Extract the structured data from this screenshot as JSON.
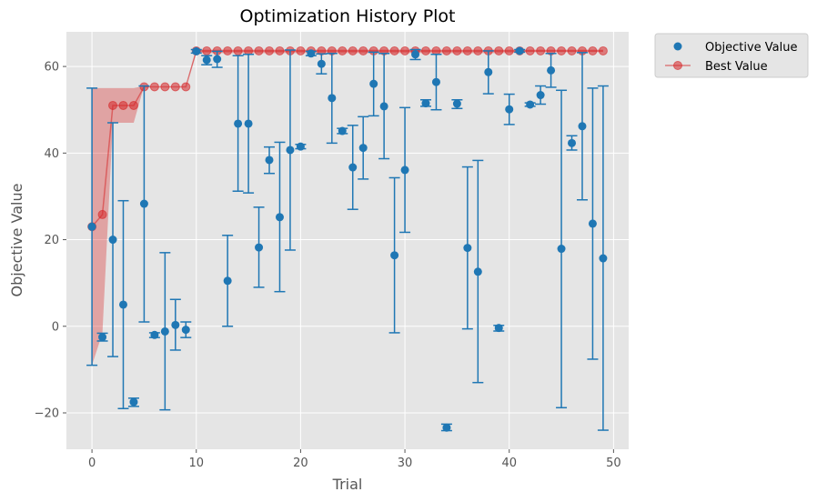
{
  "chart_data": {
    "type": "scatter",
    "title": "Optimization History Plot",
    "xlabel": "Trial",
    "ylabel": "Objective Value",
    "xlim": [
      -2.45,
      51.45
    ],
    "ylim": [
      -28.4,
      68.0
    ],
    "xticks": [
      0,
      10,
      20,
      30,
      40,
      50
    ],
    "yticks": [
      -20,
      0,
      20,
      40,
      60
    ],
    "xtick_labels": [
      "0",
      "10",
      "20",
      "30",
      "40",
      "50"
    ],
    "ytick_labels": [
      "−20",
      "0",
      "20",
      "40",
      "60"
    ],
    "grid": true,
    "legend": {
      "position": "outside-top-right",
      "entries": [
        "Objective Value",
        "Best Value"
      ]
    },
    "colors": {
      "objective": "#1f77b4",
      "best": "#d62728",
      "plot_bg": "#e5e5e5",
      "grid": "#ffffff"
    },
    "series": [
      {
        "name": "Objective Value",
        "kind": "scatter_with_errorbars",
        "points": [
          {
            "x": 0,
            "y": 23.0,
            "low": -9.0,
            "high": 55.0
          },
          {
            "x": 1,
            "y": -2.5,
            "low": -3.4,
            "high": -1.6
          },
          {
            "x": 2,
            "y": 20.0,
            "low": -7.0,
            "high": 47.0
          },
          {
            "x": 3,
            "y": 5.0,
            "low": -19.0,
            "high": 29.0
          },
          {
            "x": 4,
            "y": -17.5,
            "low": -18.5,
            "high": -16.6
          },
          {
            "x": 5,
            "y": 28.3,
            "low": 1.0,
            "high": 55.5
          },
          {
            "x": 6,
            "y": -2.0,
            "low": -2.6,
            "high": -1.5
          },
          {
            "x": 7,
            "y": -1.2,
            "low": -19.3,
            "high": 17.0
          },
          {
            "x": 8,
            "y": 0.3,
            "low": -5.5,
            "high": 6.2
          },
          {
            "x": 9,
            "y": -0.8,
            "low": -2.6,
            "high": 1.0
          },
          {
            "x": 10,
            "y": 63.5,
            "low": 63.1,
            "high": 63.9
          },
          {
            "x": 11,
            "y": 61.5,
            "low": 60.4,
            "high": 62.5
          },
          {
            "x": 12,
            "y": 61.7,
            "low": 59.8,
            "high": 63.5
          },
          {
            "x": 13,
            "y": 10.5,
            "low": 0.0,
            "high": 21.0
          },
          {
            "x": 14,
            "y": 46.8,
            "low": 31.2,
            "high": 62.5
          },
          {
            "x": 15,
            "y": 46.8,
            "low": 30.8,
            "high": 62.8
          },
          {
            "x": 16,
            "y": 18.2,
            "low": 9.0,
            "high": 27.5
          },
          {
            "x": 17,
            "y": 38.4,
            "low": 35.3,
            "high": 41.4
          },
          {
            "x": 18,
            "y": 25.2,
            "low": 8.0,
            "high": 42.5
          },
          {
            "x": 19,
            "y": 40.7,
            "low": 17.6,
            "high": 63.8
          },
          {
            "x": 20,
            "y": 41.5,
            "low": 41.0,
            "high": 42.0
          },
          {
            "x": 21,
            "y": 63.0,
            "low": 62.5,
            "high": 63.5
          },
          {
            "x": 22,
            "y": 60.6,
            "low": 58.3,
            "high": 62.9
          },
          {
            "x": 23,
            "y": 52.7,
            "low": 42.3,
            "high": 63.0
          },
          {
            "x": 24,
            "y": 45.1,
            "low": 44.5,
            "high": 45.7
          },
          {
            "x": 25,
            "y": 36.7,
            "low": 27.0,
            "high": 46.4
          },
          {
            "x": 26,
            "y": 41.2,
            "low": 34.0,
            "high": 48.4
          },
          {
            "x": 27,
            "y": 56.0,
            "low": 48.6,
            "high": 63.3
          },
          {
            "x": 28,
            "y": 50.8,
            "low": 38.7,
            "high": 63.0
          },
          {
            "x": 29,
            "y": 16.4,
            "low": -1.5,
            "high": 34.3
          },
          {
            "x": 30,
            "y": 36.1,
            "low": 21.7,
            "high": 50.5
          },
          {
            "x": 31,
            "y": 62.8,
            "low": 61.6,
            "high": 63.9
          },
          {
            "x": 32,
            "y": 51.5,
            "low": 50.8,
            "high": 52.3
          },
          {
            "x": 33,
            "y": 56.4,
            "low": 50.0,
            "high": 62.8
          },
          {
            "x": 34,
            "y": -23.4,
            "low": -24.1,
            "high": -22.6
          },
          {
            "x": 35,
            "y": 51.4,
            "low": 50.3,
            "high": 52.3
          },
          {
            "x": 36,
            "y": 18.1,
            "low": -0.6,
            "high": 36.8
          },
          {
            "x": 37,
            "y": 12.6,
            "low": -13.0,
            "high": 38.3
          },
          {
            "x": 38,
            "y": 58.7,
            "low": 53.7,
            "high": 63.6
          },
          {
            "x": 39,
            "y": -0.4,
            "low": -1.1,
            "high": 0.2
          },
          {
            "x": 40,
            "y": 50.1,
            "low": 46.6,
            "high": 53.6
          },
          {
            "x": 41,
            "y": 63.6,
            "low": 63.3,
            "high": 63.9
          },
          {
            "x": 42,
            "y": 51.2,
            "low": 50.8,
            "high": 51.6
          },
          {
            "x": 43,
            "y": 53.4,
            "low": 51.3,
            "high": 55.5
          },
          {
            "x": 44,
            "y": 59.1,
            "low": 55.2,
            "high": 63.0
          },
          {
            "x": 45,
            "y": 17.9,
            "low": -18.8,
            "high": 54.5
          },
          {
            "x": 46,
            "y": 42.3,
            "low": 40.7,
            "high": 44.0
          },
          {
            "x": 47,
            "y": 46.2,
            "low": 29.2,
            "high": 63.2
          },
          {
            "x": 48,
            "y": 23.7,
            "low": -7.6,
            "high": 55.0
          },
          {
            "x": 49,
            "y": 15.7,
            "low": -24.0,
            "high": 55.5
          }
        ]
      },
      {
        "name": "Best Value",
        "kind": "line_with_markers_and_band",
        "x": [
          0,
          1,
          2,
          3,
          4,
          5,
          6,
          7,
          8,
          9,
          10,
          11,
          12,
          13,
          14,
          15,
          16,
          17,
          18,
          19,
          20,
          21,
          22,
          23,
          24,
          25,
          26,
          27,
          28,
          29,
          30,
          31,
          32,
          33,
          34,
          35,
          36,
          37,
          38,
          39,
          40,
          41,
          42,
          43,
          44,
          45,
          46,
          47,
          48,
          49
        ],
        "values": [
          23.0,
          25.8,
          51.0,
          51.0,
          51.0,
          55.3,
          55.3,
          55.3,
          55.3,
          55.3,
          63.6,
          63.6,
          63.6,
          63.6,
          63.6,
          63.6,
          63.6,
          63.6,
          63.6,
          63.6,
          63.6,
          63.6,
          63.6,
          63.6,
          63.6,
          63.6,
          63.6,
          63.6,
          63.6,
          63.6,
          63.6,
          63.6,
          63.6,
          63.6,
          63.6,
          63.6,
          63.6,
          63.6,
          63.6,
          63.6,
          63.6,
          63.6,
          63.6,
          63.6,
          63.6,
          63.6,
          63.6,
          63.6,
          63.6,
          63.6
        ],
        "band_low": [
          -9.0,
          -1.6,
          47.0,
          47.0,
          47.0,
          55.5,
          55.5,
          55.5,
          55.5,
          55.5,
          63.1,
          63.1,
          63.1,
          63.1,
          63.1,
          63.1,
          63.1,
          63.1,
          63.1,
          63.1,
          63.1,
          63.1,
          63.1,
          63.1,
          63.1,
          63.1,
          63.1,
          63.1,
          63.1,
          63.1,
          63.1,
          63.1,
          63.1,
          63.1,
          63.1,
          63.1,
          63.1,
          63.1,
          63.1,
          63.1,
          63.1,
          63.3,
          63.3,
          63.3,
          63.3,
          63.3,
          63.3,
          63.3,
          63.3,
          63.3
        ],
        "band_high": [
          55.0,
          55.0,
          55.0,
          55.0,
          55.0,
          55.5,
          55.5,
          55.5,
          55.5,
          55.5,
          63.9,
          63.9,
          63.9,
          63.9,
          63.9,
          63.9,
          63.9,
          63.9,
          63.9,
          63.9,
          63.9,
          63.9,
          63.9,
          63.9,
          63.9,
          63.9,
          63.9,
          63.9,
          63.9,
          63.9,
          63.9,
          63.9,
          63.9,
          63.9,
          63.9,
          63.9,
          63.9,
          63.9,
          63.9,
          63.9,
          63.9,
          63.9,
          63.9,
          63.9,
          63.9,
          63.9,
          63.9,
          63.9,
          63.9,
          63.9
        ]
      }
    ]
  }
}
